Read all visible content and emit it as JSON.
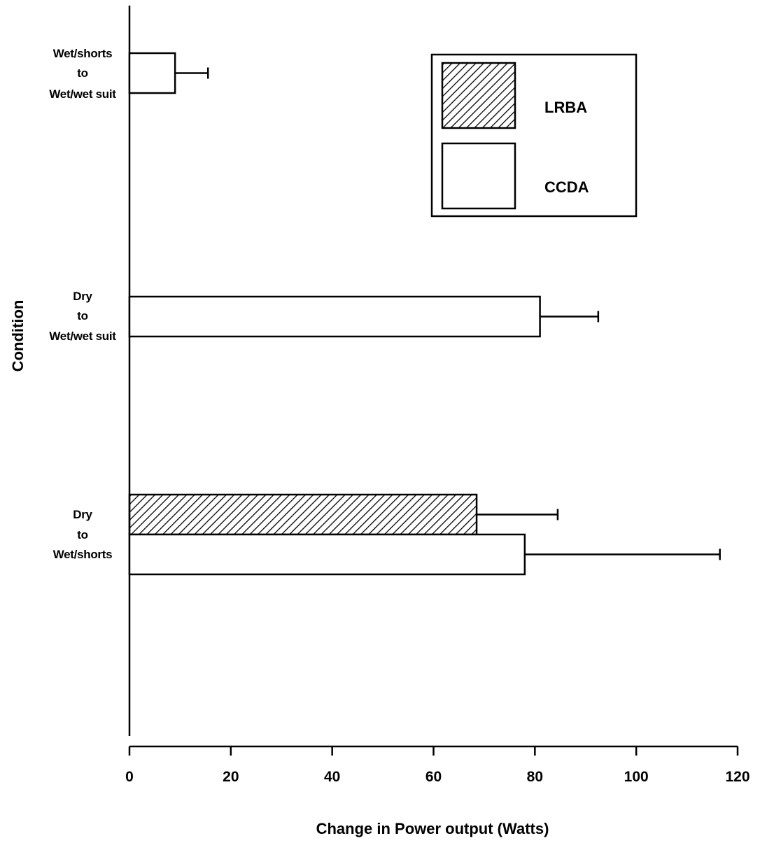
{
  "chart_data": {
    "type": "bar",
    "orientation": "horizontal",
    "xlabel": "Change in Power output (Watts)",
    "ylabel": "Condition",
    "xlim": [
      0,
      120
    ],
    "xticks": [
      "0",
      "20",
      "40",
      "60",
      "80",
      "100",
      "120"
    ],
    "categories": [
      [
        "Wet/shorts",
        "to",
        "Wet/wet suit"
      ],
      [
        "Dry",
        "to",
        "Wet/wet suit"
      ],
      [
        "Dry",
        "to",
        "Wet/shorts"
      ]
    ],
    "series": [
      {
        "name": "LRBA",
        "pattern": "hatched",
        "values": [
          null,
          null,
          68.5
        ],
        "errors": [
          null,
          null,
          16
        ]
      },
      {
        "name": "CCDA",
        "pattern": "open",
        "values": [
          9,
          81,
          78
        ],
        "errors": [
          6.5,
          11.5,
          38.5
        ]
      }
    ],
    "legend": {
      "position": "top-right",
      "entries": [
        "LRBA",
        "CCDA"
      ]
    },
    "grid": false
  }
}
